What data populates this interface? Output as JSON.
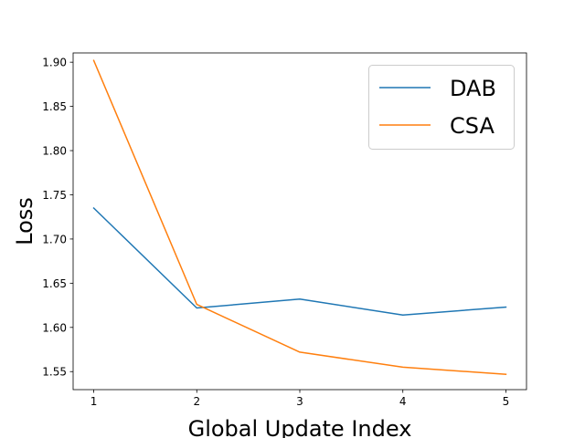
{
  "chart_data": {
    "type": "line",
    "title": "",
    "xlabel": "Global Update Index",
    "ylabel": "Loss",
    "x": [
      1,
      2,
      3,
      4,
      5
    ],
    "x_tick_labels": [
      "1",
      "2",
      "3",
      "4",
      "5"
    ],
    "y_tick_values": [
      1.55,
      1.6,
      1.65,
      1.7,
      1.75,
      1.8,
      1.85,
      1.9
    ],
    "y_tick_labels": [
      "1.55",
      "1.60",
      "1.65",
      "1.70",
      "1.75",
      "1.80",
      "1.85",
      "1.90"
    ],
    "xlim": [
      0.8,
      5.2
    ],
    "ylim": [
      1.5296,
      1.9105
    ],
    "grid": false,
    "legend_position": "top-right",
    "series": [
      {
        "name": "DAB",
        "color": "#1f77b4",
        "values": [
          1.735,
          1.622,
          1.632,
          1.614,
          1.623
        ]
      },
      {
        "name": "CSA",
        "color": "#ff7f0e",
        "values": [
          1.902,
          1.626,
          1.572,
          1.555,
          1.547
        ]
      }
    ]
  }
}
